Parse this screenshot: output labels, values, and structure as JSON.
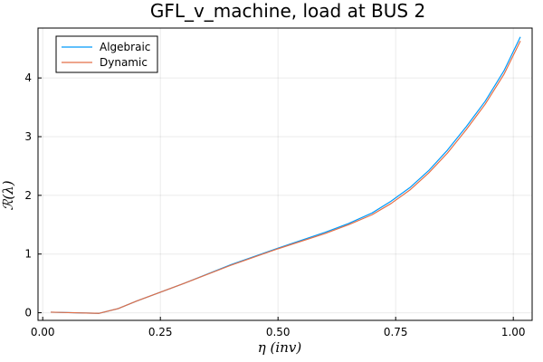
{
  "chart_data": {
    "type": "line",
    "title": "GFL_v_machine, load at BUS 2",
    "xlabel": "η (inv)",
    "ylabel": "ℛ(λ)",
    "xlim": [
      -0.01,
      1.04
    ],
    "ylim": [
      -0.13,
      4.85
    ],
    "xticks": [
      0.0,
      0.25,
      0.5,
      0.75,
      1.0
    ],
    "xtick_labels": [
      "0.00",
      "0.25",
      "0.50",
      "0.75",
      "1.00"
    ],
    "yticks": [
      0,
      1,
      2,
      3,
      4
    ],
    "ytick_labels": [
      "0",
      "1",
      "2",
      "3",
      "4"
    ],
    "grid": true,
    "legend": "top-left",
    "series": [
      {
        "name": "Algebraic",
        "color": "#009AFA",
        "x": [
          0.017,
          0.12,
          0.16,
          0.2,
          0.3,
          0.4,
          0.5,
          0.6,
          0.65,
          0.7,
          0.74,
          0.78,
          0.82,
          0.86,
          0.9,
          0.94,
          0.98,
          1.015
        ],
        "y": [
          0.01,
          -0.01,
          0.07,
          0.2,
          0.5,
          0.82,
          1.1,
          1.37,
          1.52,
          1.7,
          1.9,
          2.13,
          2.42,
          2.77,
          3.17,
          3.6,
          4.12,
          4.7
        ]
      },
      {
        "name": "Dynamic",
        "color": "#E36F47",
        "x": [
          0.017,
          0.12,
          0.16,
          0.2,
          0.3,
          0.4,
          0.5,
          0.6,
          0.65,
          0.7,
          0.74,
          0.78,
          0.82,
          0.86,
          0.9,
          0.94,
          0.98,
          1.015
        ],
        "y": [
          0.01,
          -0.01,
          0.07,
          0.2,
          0.5,
          0.81,
          1.09,
          1.35,
          1.5,
          1.67,
          1.86,
          2.09,
          2.38,
          2.72,
          3.12,
          3.55,
          4.06,
          4.63
        ]
      }
    ]
  }
}
